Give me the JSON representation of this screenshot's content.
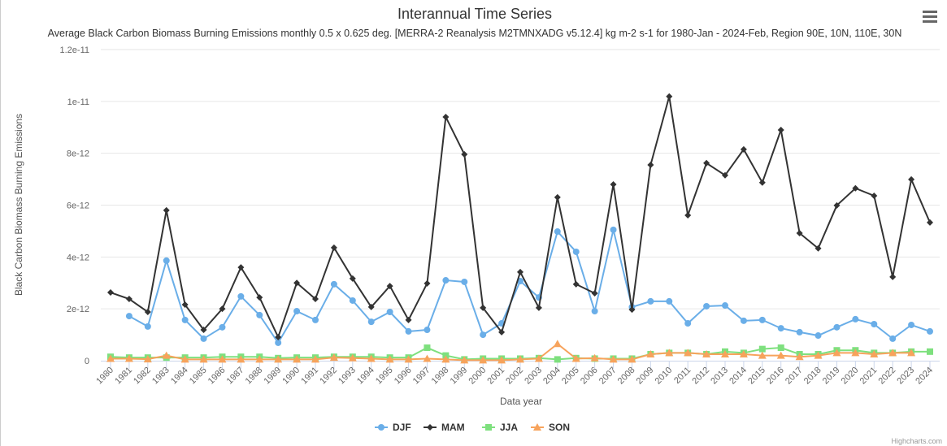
{
  "chart_data": {
    "type": "line",
    "title": "Interannual Time Series",
    "subtitle": "Average Black Carbon Biomass Burning Emissions monthly 0.5 x 0.625 deg. [MERRA-2 Reanalysis M2TMNXADG v5.12.4] kg m-2 s-1 for 1980-Jan - 2024-Feb, Region 90E, 10N, 110E, 30N",
    "xlabel": "Data year",
    "ylabel": "Black Carbon Biomass Burning Emissions",
    "ylim": [
      0,
      1.2e-11
    ],
    "yticks": [
      "0",
      "2e-12",
      "4e-12",
      "6e-12",
      "8e-12",
      "1e-11",
      "1.2e-11"
    ],
    "grid": true,
    "legend": "bottom",
    "categories": [
      "1980",
      "1981",
      "1982",
      "1983",
      "1984",
      "1985",
      "1986",
      "1987",
      "1988",
      "1989",
      "1990",
      "1991",
      "1992",
      "1993",
      "1994",
      "1995",
      "1996",
      "1997",
      "1998",
      "1999",
      "2000",
      "2001",
      "2002",
      "2003",
      "2004",
      "2005",
      "2006",
      "2007",
      "2008",
      "2009",
      "2010",
      "2011",
      "2012",
      "2013",
      "2014",
      "2015",
      "2016",
      "2017",
      "2018",
      "2019",
      "2020",
      "2021",
      "2022",
      "2023",
      "2024"
    ],
    "series": [
      {
        "name": "DJF",
        "color": "#6aaee8",
        "marker": "circle",
        "values": [
          null,
          1.72e-12,
          1.32e-12,
          3.86e-12,
          1.57e-12,
          8.5e-13,
          1.29e-12,
          2.48e-12,
          1.76e-12,
          6.9e-13,
          1.91e-12,
          1.57e-12,
          2.95e-12,
          2.32e-12,
          1.5e-12,
          1.88e-12,
          1.13e-12,
          1.19e-12,
          3.1e-12,
          3.04e-12,
          1e-12,
          1.44e-12,
          3.07e-12,
          2.44e-12,
          4.98e-12,
          4.2e-12,
          1.91e-12,
          5.05e-12,
          2.07e-12,
          2.29e-12,
          2.29e-12,
          1.44e-12,
          2.1e-12,
          2.13e-12,
          1.54e-12,
          1.57e-12,
          1.25e-12,
          1.1e-12,
          9.7e-13,
          1.29e-12,
          1.6e-12,
          1.41e-12,
          8.5e-13,
          1.38e-12,
          1.13e-12
        ]
      },
      {
        "name": "MAM",
        "color": "#333333",
        "marker": "diamond",
        "values": [
          2.63e-12,
          2.38e-12,
          1.88e-12,
          5.8e-12,
          2.16e-12,
          1.19e-12,
          2e-12,
          3.6e-12,
          2.44e-12,
          9.1e-13,
          3e-12,
          2.38e-12,
          4.36e-12,
          3.17e-12,
          2.07e-12,
          2.88e-12,
          1.57e-12,
          2.98e-12,
          9.4e-12,
          7.96e-12,
          2.04e-12,
          1.1e-12,
          3.42e-12,
          2.04e-12,
          6.3e-12,
          2.95e-12,
          2.6e-12,
          6.8e-12,
          1.97e-12,
          7.55e-12,
          1.019e-11,
          5.61e-12,
          7.62e-12,
          7.15e-12,
          8.15e-12,
          6.87e-12,
          8.9e-12,
          4.92e-12,
          4.33e-12,
          5.99e-12,
          6.65e-12,
          6.36e-12,
          3.23e-12,
          6.99e-12,
          5.33e-12
        ]
      },
      {
        "name": "JJA",
        "color": "#7ee07e",
        "marker": "square",
        "values": [
          1.5e-13,
          1.2e-13,
          1.2e-13,
          1.2e-13,
          1.2e-13,
          1.2e-13,
          1.5e-13,
          1.5e-13,
          1.5e-13,
          1e-13,
          1.2e-13,
          1.2e-13,
          1.5e-13,
          1.5e-13,
          1.5e-13,
          1.2e-13,
          1.2e-13,
          5e-13,
          2e-13,
          5e-14,
          8e-14,
          8e-14,
          8e-14,
          1e-13,
          5e-14,
          1e-13,
          8e-14,
          8e-14,
          8e-14,
          2.5e-13,
          3e-13,
          3e-13,
          2.5e-13,
          3.5e-13,
          3e-13,
          4.5e-13,
          5e-13,
          2.5e-13,
          2.5e-13,
          4e-13,
          4e-13,
          3e-13,
          3e-13,
          3.5e-13,
          3.5e-13
        ]
      },
      {
        "name": "SON",
        "color": "#f7a35c",
        "marker": "triangle",
        "values": [
          8e-14,
          8e-14,
          6e-14,
          2e-13,
          5e-14,
          5e-14,
          5e-14,
          5e-14,
          5e-14,
          5e-14,
          5e-14,
          5e-14,
          1.2e-13,
          1e-13,
          8e-14,
          5e-14,
          5e-14,
          8e-14,
          5e-14,
          2e-14,
          2e-14,
          2e-14,
          5e-14,
          8e-14,
          6.5e-13,
          8e-14,
          1e-13,
          5e-14,
          5e-14,
          2.5e-13,
          3e-13,
          3e-13,
          2.5e-13,
          2.5e-13,
          2.5e-13,
          2e-13,
          2e-13,
          1.5e-13,
          2e-13,
          3e-13,
          3e-13,
          2.5e-13,
          3e-13,
          3e-13,
          null
        ]
      }
    ],
    "credits": "Highcharts.com"
  }
}
